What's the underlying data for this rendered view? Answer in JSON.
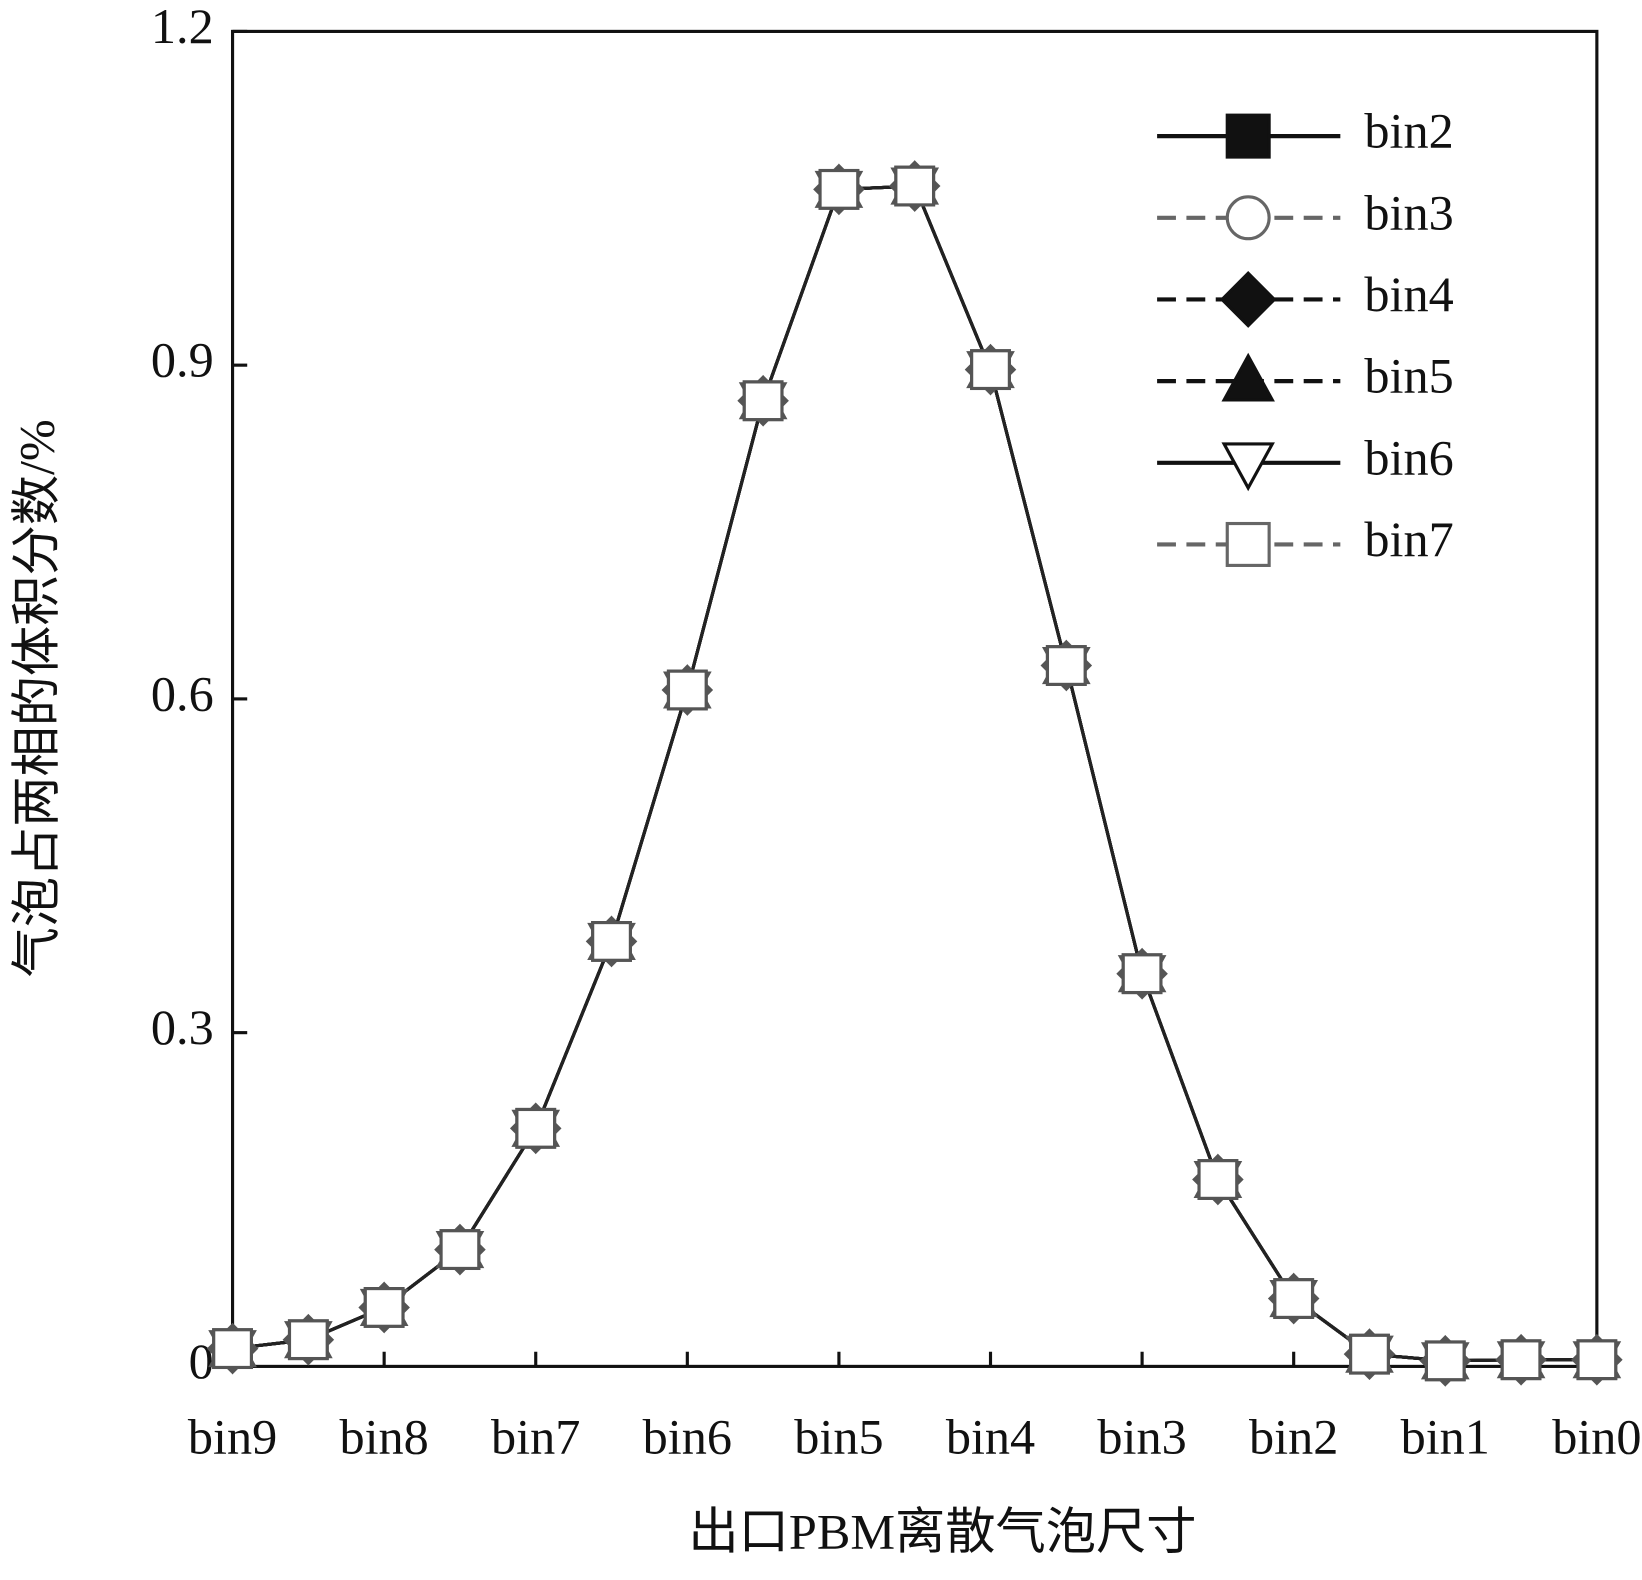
{
  "chart_data": {
    "type": "line",
    "xlabel": "出口PBM离散气泡尺寸",
    "ylabel": "气泡占两相的体积分数/%",
    "x": [
      0,
      0.5,
      1,
      1.5,
      2,
      2.5,
      3,
      3.5,
      4,
      4.5,
      5,
      5.5,
      6,
      6.5,
      7,
      7.5,
      8,
      8.5,
      9
    ],
    "xlim": [
      0,
      9
    ],
    "xticks": [
      {
        "value": 0,
        "label": "bin9"
      },
      {
        "value": 1,
        "label": "bin8"
      },
      {
        "value": 2,
        "label": "bin7"
      },
      {
        "value": 3,
        "label": "bin6"
      },
      {
        "value": 4,
        "label": "bin5"
      },
      {
        "value": 5,
        "label": "bin4"
      },
      {
        "value": 6,
        "label": "bin3"
      },
      {
        "value": 7,
        "label": "bin2"
      },
      {
        "value": 8,
        "label": "bin1"
      },
      {
        "value": 9,
        "label": "bin0"
      }
    ],
    "ylim": [
      0,
      1.2
    ],
    "yticks": [
      0,
      0.3,
      0.6,
      0.9,
      1.2
    ],
    "series": [
      {
        "name": "bin2",
        "color": "#111111",
        "marker": "square",
        "filled": true,
        "dashed": false,
        "values": [
          0.016,
          0.024,
          0.053,
          0.105,
          0.214,
          0.382,
          0.608,
          0.868,
          1.058,
          1.061,
          0.896,
          0.63,
          0.353,
          0.168,
          0.061,
          0.011,
          0.005,
          0.006,
          0.006
        ]
      },
      {
        "name": "bin3",
        "color": "#666666",
        "marker": "circle",
        "filled": false,
        "dashed": true,
        "values": [
          0.016,
          0.024,
          0.053,
          0.105,
          0.214,
          0.382,
          0.608,
          0.868,
          1.058,
          1.061,
          0.896,
          0.63,
          0.353,
          0.168,
          0.061,
          0.011,
          0.005,
          0.006,
          0.006
        ]
      },
      {
        "name": "bin4",
        "color": "#111111",
        "marker": "diamond",
        "filled": true,
        "dashed": true,
        "values": [
          0.016,
          0.024,
          0.053,
          0.105,
          0.214,
          0.382,
          0.608,
          0.868,
          1.058,
          1.061,
          0.896,
          0.63,
          0.353,
          0.168,
          0.061,
          0.011,
          0.005,
          0.006,
          0.006
        ]
      },
      {
        "name": "bin5",
        "color": "#111111",
        "marker": "triangle",
        "filled": true,
        "dashed": true,
        "values": [
          0.016,
          0.024,
          0.053,
          0.105,
          0.214,
          0.382,
          0.608,
          0.868,
          1.058,
          1.061,
          0.896,
          0.63,
          0.353,
          0.168,
          0.061,
          0.011,
          0.005,
          0.006,
          0.006
        ]
      },
      {
        "name": "bin6",
        "color": "#111111",
        "marker": "triangle-down",
        "filled": false,
        "dashed": false,
        "values": [
          0.016,
          0.024,
          0.053,
          0.105,
          0.214,
          0.382,
          0.608,
          0.868,
          1.058,
          1.061,
          0.896,
          0.63,
          0.353,
          0.168,
          0.061,
          0.011,
          0.005,
          0.006,
          0.006
        ]
      },
      {
        "name": "bin7",
        "color": "#666666",
        "marker": "square",
        "filled": false,
        "dashed": true,
        "values": [
          0.016,
          0.024,
          0.053,
          0.105,
          0.214,
          0.382,
          0.608,
          0.868,
          1.058,
          1.061,
          0.896,
          0.63,
          0.353,
          0.168,
          0.061,
          0.011,
          0.005,
          0.006,
          0.006
        ]
      }
    ]
  }
}
